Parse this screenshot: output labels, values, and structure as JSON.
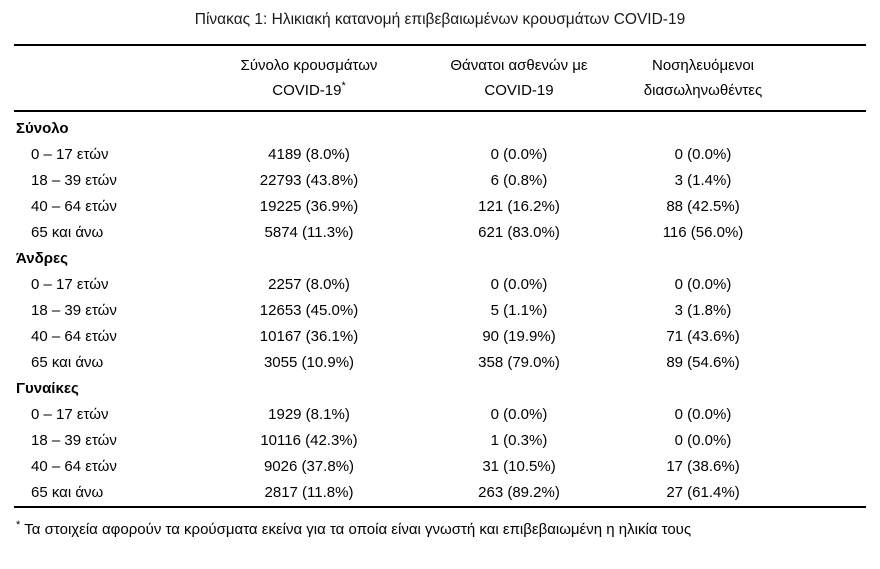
{
  "page": {
    "title": "Πίνακας 1: Ηλικιακή κατανομή επιβεβαιωμένων κρουσμάτων COVID-19"
  },
  "table": {
    "columns": [
      {
        "line1": "Σύνολο κρουσμάτων",
        "line2": "COVID-19",
        "marker": "*"
      },
      {
        "line1": "Θάνατοι ασθενών με",
        "line2": "COVID-19",
        "marker": ""
      },
      {
        "line1": "Νοσηλευόμενοι",
        "line2": "διασωληνωθέντες",
        "marker": ""
      }
    ],
    "sections": [
      {
        "label": "Σύνολο",
        "rows": [
          {
            "label": "0 – 17 ετών",
            "values": [
              "4189 (8.0%)",
              "0 (0.0%)",
              "0 (0.0%)"
            ]
          },
          {
            "label": "18 – 39 ετών",
            "values": [
              "22793 (43.8%)",
              "6 (0.8%)",
              "3 (1.4%)"
            ]
          },
          {
            "label": "40 – 64 ετών",
            "values": [
              "19225 (36.9%)",
              "121 (16.2%)",
              "88 (42.5%)"
            ]
          },
          {
            "label": "65 και άνω",
            "values": [
              "5874 (11.3%)",
              "621 (83.0%)",
              "116 (56.0%)"
            ]
          }
        ]
      },
      {
        "label": "Άνδρες",
        "rows": [
          {
            "label": "0 – 17 ετών",
            "values": [
              "2257 (8.0%)",
              "0 (0.0%)",
              "0 (0.0%)"
            ]
          },
          {
            "label": "18 – 39 ετών",
            "values": [
              "12653 (45.0%)",
              "5 (1.1%)",
              "3 (1.8%)"
            ]
          },
          {
            "label": "40 – 64 ετών",
            "values": [
              "10167 (36.1%)",
              "90 (19.9%)",
              "71 (43.6%)"
            ]
          },
          {
            "label": "65 και άνω",
            "values": [
              "3055 (10.9%)",
              "358 (79.0%)",
              "89 (54.6%)"
            ]
          }
        ]
      },
      {
        "label": "Γυναίκες",
        "rows": [
          {
            "label": "0 – 17 ετών",
            "values": [
              "1929 (8.1%)",
              "0 (0.0%)",
              "0 (0.0%)"
            ]
          },
          {
            "label": "18 – 39 ετών",
            "values": [
              "10116 (42.3%)",
              "1 (0.3%)",
              "0 (0.0%)"
            ]
          },
          {
            "label": "40 – 64 ετών",
            "values": [
              "9026 (37.8%)",
              "31 (10.5%)",
              "17 (38.6%)"
            ]
          },
          {
            "label": "65 και άνω",
            "values": [
              "2817 (11.8%)",
              "263 (89.2%)",
              "27 (61.4%)"
            ]
          }
        ]
      }
    ]
  },
  "footnote": {
    "marker": "*",
    "text": "Τα στοιχεία αφορούν τα κρούσματα εκείνα για τα οποία είναι γνωστή και επιβεβαιωμένη η ηλικία τους"
  }
}
